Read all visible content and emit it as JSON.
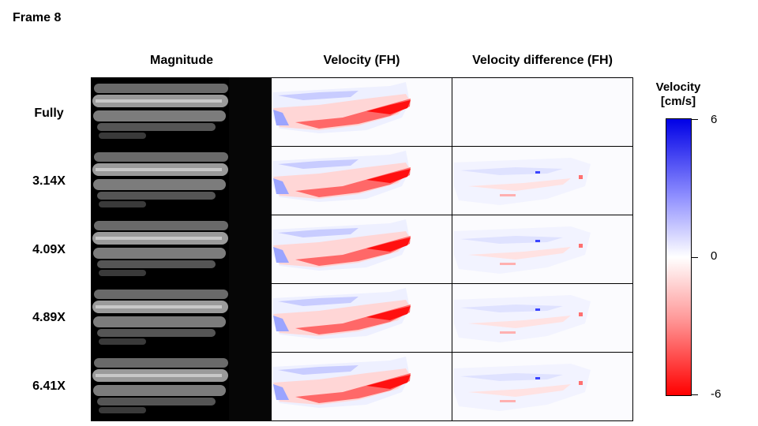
{
  "frame_title": "Frame 8",
  "columns": [
    "Magnitude",
    "Velocity (FH)",
    "Velocity difference (FH)"
  ],
  "rows": [
    "Fully",
    "3.14X",
    "4.09X",
    "4.89X",
    "6.41X"
  ],
  "colorbar": {
    "title_line1": "Velocity",
    "title_line2": "[cm/s]",
    "max_label": "6",
    "mid_label": "0",
    "min_label": "-6",
    "colors": {
      "max": "#0000e6",
      "mid": "#ffffff",
      "min": "#ff0000"
    }
  }
}
